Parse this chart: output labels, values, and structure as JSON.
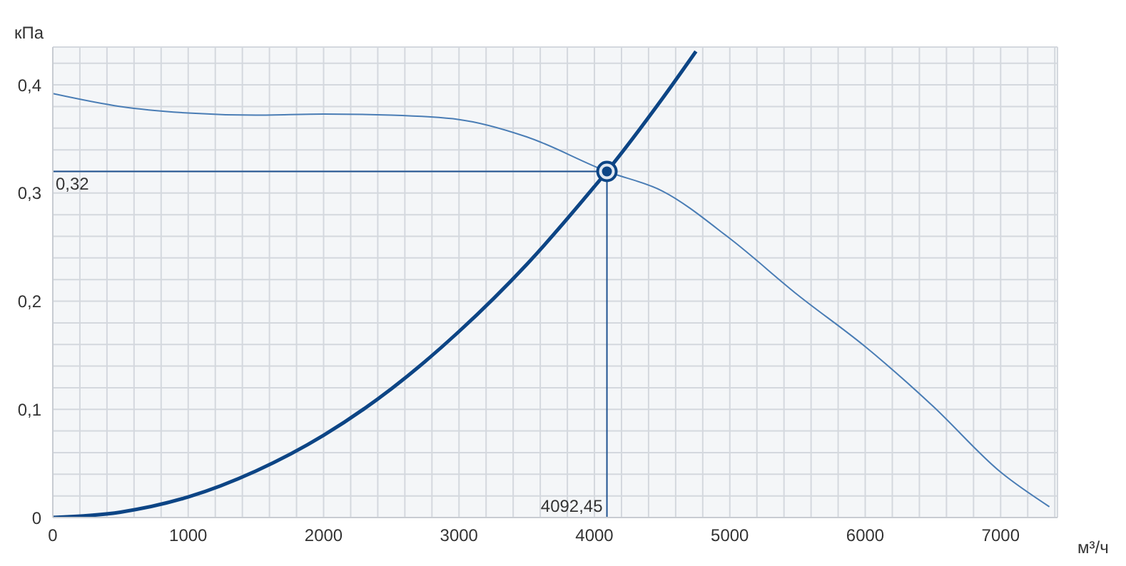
{
  "chart_data": {
    "type": "line",
    "xlabel": "м³/ч",
    "ylabel": "кПа",
    "xlim": [
      0,
      7420
    ],
    "ylim": [
      0,
      0.435
    ],
    "xticks": [
      0,
      {
        "value": 200,
        "label": null
      },
      {
        "value": 400,
        "label": null
      },
      {
        "value": 600,
        "label": null
      },
      {
        "value": 800,
        "label": null
      },
      1000,
      {
        "value": 1200,
        "label": null
      },
      {
        "value": 1400,
        "label": null
      },
      {
        "value": 1600,
        "label": null
      },
      {
        "value": 1800,
        "label": null
      },
      2000,
      {
        "value": 2200,
        "label": null
      },
      {
        "value": 2400,
        "label": null
      },
      {
        "value": 2600,
        "label": null
      },
      {
        "value": 2800,
        "label": null
      },
      3000,
      {
        "value": 3200,
        "label": null
      },
      {
        "value": 3400,
        "label": null
      },
      {
        "value": 3600,
        "label": null
      },
      {
        "value": 3800,
        "label": null
      },
      4000,
      {
        "value": 4200,
        "label": null
      },
      {
        "value": 4400,
        "label": null
      },
      {
        "value": 4600,
        "label": null
      },
      {
        "value": 4800,
        "label": null
      },
      5000,
      {
        "value": 5200,
        "label": null
      },
      {
        "value": 5400,
        "label": null
      },
      {
        "value": 5600,
        "label": null
      },
      {
        "value": 5800,
        "label": null
      },
      6000,
      {
        "value": 6200,
        "label": null
      },
      {
        "value": 6400,
        "label": null
      },
      {
        "value": 6600,
        "label": null
      },
      {
        "value": 6800,
        "label": null
      },
      7000,
      {
        "value": 7200,
        "label": null
      },
      {
        "value": 7400,
        "label": null
      }
    ],
    "yticks": [
      0,
      {
        "value": 0.02,
        "label": null
      },
      {
        "value": 0.04,
        "label": null
      },
      {
        "value": 0.06,
        "label": null
      },
      {
        "value": 0.08,
        "label": null
      },
      {
        "value": 0.1,
        "label": "0,1"
      },
      {
        "value": 0.12,
        "label": null
      },
      {
        "value": 0.14,
        "label": null
      },
      {
        "value": 0.16,
        "label": null
      },
      {
        "value": 0.18,
        "label": null
      },
      {
        "value": 0.2,
        "label": "0,2"
      },
      {
        "value": 0.22,
        "label": null
      },
      {
        "value": 0.24,
        "label": null
      },
      {
        "value": 0.26,
        "label": null
      },
      {
        "value": 0.28,
        "label": null
      },
      {
        "value": 0.3,
        "label": "0,3"
      },
      {
        "value": 0.32,
        "label": null
      },
      {
        "value": 0.34,
        "label": null
      },
      {
        "value": 0.36,
        "label": null
      },
      {
        "value": 0.38,
        "label": null
      },
      {
        "value": 0.4,
        "label": "0,4"
      },
      {
        "value": 0.42,
        "label": null
      }
    ],
    "grid": true,
    "legend": false,
    "series": [
      {
        "color": "#4a7db5",
        "x": [
          0,
          500,
          1000,
          1500,
          2000,
          2500,
          3000,
          3500,
          4092.45,
          4500,
          5000,
          5500,
          6000,
          6500,
          7000,
          7360
        ],
        "values": [
          0.392,
          0.38,
          0.374,
          0.372,
          0.373,
          0.372,
          0.368,
          0.352,
          0.32,
          0.302,
          0.258,
          0.206,
          0.158,
          0.103,
          0.042,
          0.01
        ]
      },
      {
        "color": "#0d4585",
        "x": [
          0,
          500,
          1000,
          1500,
          2000,
          2500,
          3000,
          3500,
          4000,
          4092.45,
          4500,
          4750
        ],
        "values": [
          0,
          0.005,
          0.019,
          0.043,
          0.076,
          0.119,
          0.172,
          0.234,
          0.306,
          0.32,
          0.387,
          0.431
        ]
      },
      {
        "type": "scatter",
        "color": "#0d4585",
        "marker": "circle",
        "x": [
          4092.45
        ],
        "values": [
          0.32
        ]
      }
    ],
    "ref_lines": [
      {
        "axis": "x",
        "value": 4092.45,
        "label": "4092,45",
        "color": "#1f5290"
      },
      {
        "axis": "y",
        "value": 0.32,
        "label": "0,32",
        "color": "#1f5290"
      }
    ]
  }
}
